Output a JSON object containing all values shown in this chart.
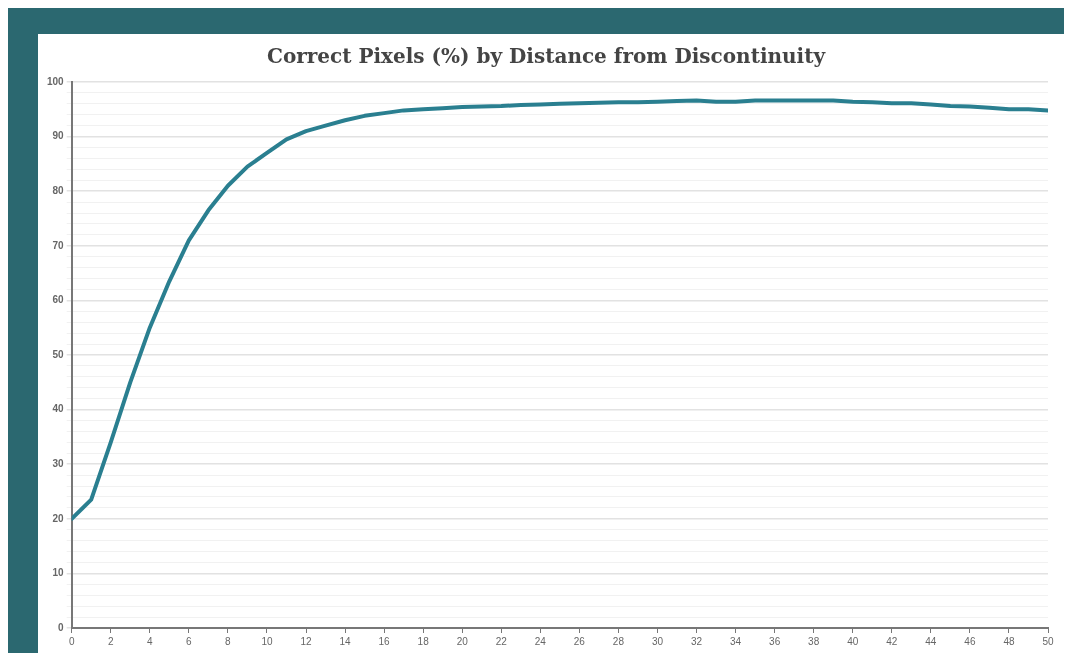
{
  "chart_data": {
    "type": "line",
    "title": "Correct Pixels (%) by Distance from Discontinuity",
    "x": [
      0,
      1,
      2,
      3,
      4,
      5,
      6,
      7,
      8,
      9,
      10,
      11,
      12,
      13,
      14,
      15,
      16,
      17,
      18,
      19,
      20,
      21,
      22,
      23,
      24,
      25,
      26,
      27,
      28,
      29,
      30,
      31,
      32,
      33,
      34,
      35,
      36,
      37,
      38,
      39,
      40,
      41,
      42,
      43,
      44,
      45,
      46,
      47,
      48,
      49,
      50
    ],
    "series": [
      {
        "color": "#2a7f90",
        "values": [
          20,
          23.5,
          34,
          45,
          55,
          63.5,
          71,
          76.5,
          81,
          84.5,
          87,
          89.5,
          91,
          92,
          93,
          93.8,
          94.3,
          94.8,
          95,
          95.2,
          95.4,
          95.5,
          95.6,
          95.8,
          95.9,
          96,
          96.1,
          96.2,
          96.3,
          96.3,
          96.4,
          96.5,
          96.6,
          96.4,
          96.4,
          96.6,
          96.6,
          96.6,
          96.6,
          96.6,
          96.4,
          96.3,
          96.1,
          96.1,
          95.9,
          95.6,
          95.5,
          95.3,
          95,
          95,
          94.8
        ]
      }
    ],
    "xlim": [
      0,
      50
    ],
    "xticks": [
      0,
      2,
      4,
      6,
      8,
      10,
      12,
      14,
      16,
      18,
      20,
      22,
      24,
      26,
      28,
      30,
      32,
      34,
      36,
      38,
      40,
      42,
      44,
      46,
      48,
      50
    ],
    "ylim": [
      0,
      100
    ],
    "yticks": [
      0,
      {
        "value": 2,
        "label": null
      },
      {
        "value": 4,
        "label": null
      },
      {
        "value": 6,
        "label": null
      },
      {
        "value": 8,
        "label": null
      },
      10,
      {
        "value": 12,
        "label": null
      },
      {
        "value": 14,
        "label": null
      },
      {
        "value": 16,
        "label": null
      },
      {
        "value": 18,
        "label": null
      },
      20,
      {
        "value": 22,
        "label": null
      },
      {
        "value": 24,
        "label": null
      },
      {
        "value": 26,
        "label": null
      },
      {
        "value": 28,
        "label": null
      },
      30,
      {
        "value": 32,
        "label": null
      },
      {
        "value": 34,
        "label": null
      },
      {
        "value": 36,
        "label": null
      },
      {
        "value": 38,
        "label": null
      },
      40,
      {
        "value": 42,
        "label": null
      },
      {
        "value": 44,
        "label": null
      },
      {
        "value": 46,
        "label": null
      },
      {
        "value": 48,
        "label": null
      },
      50,
      {
        "value": 52,
        "label": null
      },
      {
        "value": 54,
        "label": null
      },
      {
        "value": 56,
        "label": null
      },
      {
        "value": 58,
        "label": null
      },
      60,
      {
        "value": 62,
        "label": null
      },
      {
        "value": 64,
        "label": null
      },
      {
        "value": 66,
        "label": null
      },
      {
        "value": 68,
        "label": null
      },
      70,
      {
        "value": 72,
        "label": null
      },
      {
        "value": 74,
        "label": null
      },
      {
        "value": 76,
        "label": null
      },
      {
        "value": 78,
        "label": null
      },
      80,
      {
        "value": 82,
        "label": null
      },
      {
        "value": 84,
        "label": null
      },
      {
        "value": 86,
        "label": null
      },
      {
        "value": 88,
        "label": null
      },
      90,
      {
        "value": 92,
        "label": null
      },
      {
        "value": 94,
        "label": null
      },
      {
        "value": 96,
        "label": null
      },
      {
        "value": 98,
        "label": null
      },
      100
    ],
    "grid": "y",
    "legend": false,
    "marker": "none",
    "line_style": "solid"
  }
}
